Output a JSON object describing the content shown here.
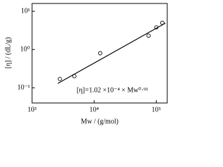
{
  "chart_data": {
    "type": "scatter",
    "x_log": true,
    "y_log": true,
    "xlabel": "Mw / (g/mol)",
    "ylabel": "[η] / (dL/g)",
    "annotation": "[η]=1.02 ×10⁻⁴ × Mw⁰·⁹¹",
    "x": [
      2800,
      4800,
      12500,
      75000,
      100000,
      125000
    ],
    "series": [
      {
        "color": "#000000",
        "values": [
          0.17,
          0.2,
          0.8,
          2.3,
          3.8,
          5.0
        ]
      }
    ],
    "fit": {
      "color": "#000000",
      "x": [
        2600,
        140000
      ],
      "values": [
        0.13,
        4.9
      ]
    },
    "xlim": [
      1000,
      150000
    ],
    "ylim": [
      0.04,
      16
    ],
    "xticks": [
      {
        "value": 1000,
        "label": "10³"
      },
      {
        "value": 10000,
        "label": "10⁴"
      },
      {
        "value": 100000,
        "label": "10⁵"
      }
    ],
    "yticks": [
      {
        "value": 0.1,
        "label": "10⁻¹"
      },
      {
        "value": 1,
        "label": "10⁰"
      },
      {
        "value": 10,
        "label": "10¹"
      }
    ]
  }
}
